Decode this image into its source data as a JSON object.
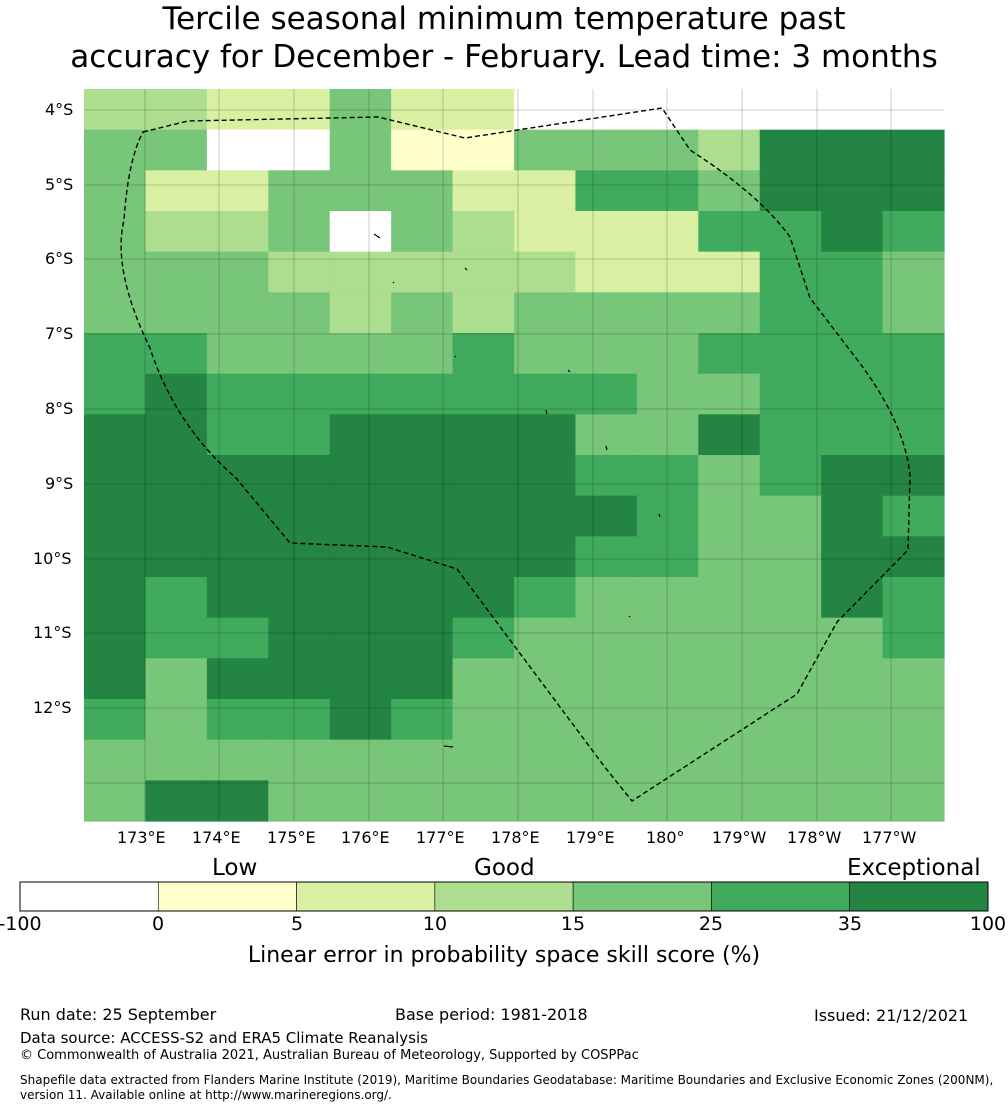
{
  "title_line1": "Tercile seasonal minimum temperature past",
  "title_line2": "accuracy for December - February. Lead time: 3 months",
  "map": {
    "lat_labels": [
      "4°S",
      "5°S",
      "6°S",
      "7°S",
      "8°S",
      "9°S",
      "10°S",
      "11°S",
      "12°S"
    ],
    "lon_labels": [
      "173°E",
      "174°E",
      "175°E",
      "176°E",
      "177°E",
      "178°E",
      "179°E",
      "180°",
      "179°W",
      "178°W",
      "177°W"
    ],
    "grid_cols": 14,
    "grid_rows": 18,
    "cell_category_rows": [
      "33224220000000",
      "44004114443666",
      "42244422554666",
      "43340432225565",
      "44433333222554",
      "44443434444554",
      "55444454445555",
      "56555555544555",
      "66556666446555",
      "66666666554566",
      "66666666654465",
      "66666666554466",
      "65666665444465",
      "65566654444445",
      "64666644444444",
      "54556544444444",
      "44444444444444",
      "46644444444444"
    ],
    "category_colors": [
      "#38a85b",
      "#46ad60",
      "#36a455",
      "#34a454",
      "#3aa958",
      "#2d8a45",
      "#218745",
      "#1e7a3f"
    ]
  },
  "colorbar": {
    "categories": [
      "Low",
      "Good",
      "Exceptional"
    ],
    "ticks": [
      "-100",
      "0",
      "5",
      "10",
      "15",
      "25",
      "35",
      "100"
    ],
    "colors": [
      "#ffffff",
      "#ffffcc",
      "#d9f0a3",
      "#addd8e",
      "#78c679",
      "#41ab5d",
      "#238443"
    ],
    "label": "Linear error in probability space skill score (%)"
  },
  "footer": {
    "run_date": "Run date: 25 September",
    "base_period": "Base period: 1981-2018",
    "issued": "Issued: 21/12/2021",
    "data_source": "Data source: ACCESS-S2 and ERA5 Climate Reanalysis",
    "copyright": "© Commonwealth of Australia 2021, Australian Bureau of Meteorology, Supported by COSPPac",
    "shapefile_line1": "Shapefile data extracted from Flanders Marine Institute (2019), Maritime Boundaries Geodatabase: Maritime Boundaries and Exclusive Economic Zones (200NM),",
    "shapefile_line2": "version 11. Available online at http://www.marineregions.org/."
  }
}
